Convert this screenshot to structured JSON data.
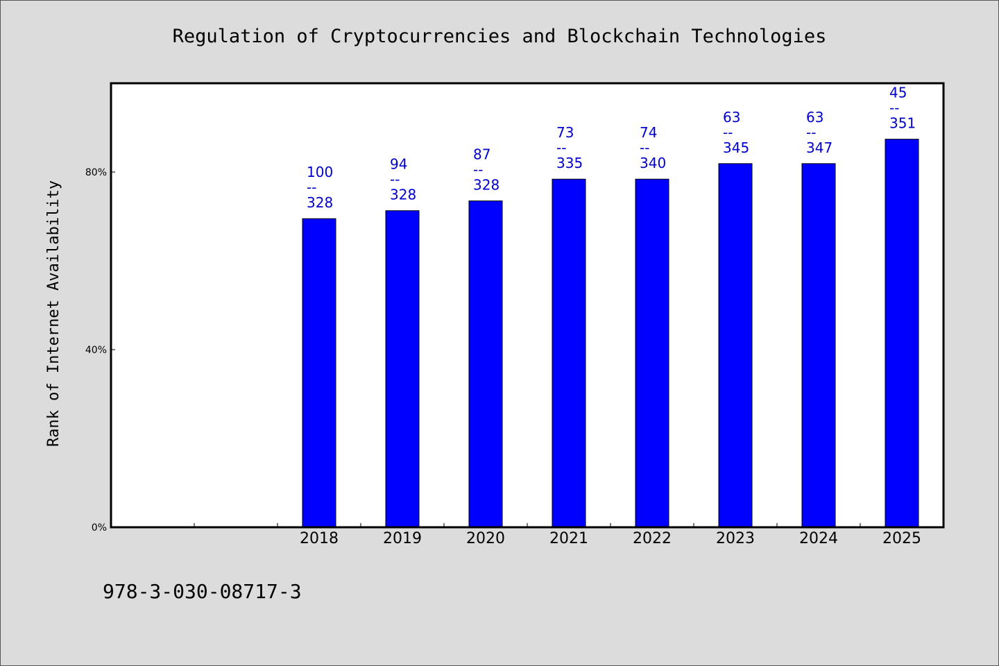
{
  "chart_data": {
    "type": "bar",
    "title": "Regulation of Cryptocurrencies and Blockchain Technologies",
    "xlabel": "",
    "ylabel": "Rank of Internet Availability",
    "categories": [
      "",
      "",
      "2018",
      "2019",
      "2020",
      "2021",
      "2022",
      "2023",
      "2024",
      "2025"
    ],
    "values": [
      null,
      null,
      69.5,
      71.3,
      73.5,
      78.4,
      78.4,
      81.9,
      81.9,
      87.4
    ],
    "data_labels": [
      null,
      null,
      [
        "100",
        "--",
        "328"
      ],
      [
        "94",
        "--",
        "328"
      ],
      [
        "87",
        "--",
        "328"
      ],
      [
        "73",
        "--",
        "335"
      ],
      [
        "74",
        "--",
        "340"
      ],
      [
        "63",
        "--",
        "345"
      ],
      [
        "63",
        "--",
        "347"
      ],
      [
        "45",
        "--",
        "351"
      ]
    ],
    "y_ticks": [
      {
        "value": 0,
        "label": "0%"
      },
      {
        "value": 40,
        "label": "40%"
      },
      {
        "value": 80,
        "label": "80%"
      }
    ],
    "ylim": [
      0,
      100
    ],
    "grid": false,
    "legend": "none",
    "bar_color": "#0000ff",
    "label_color": "#0000cc"
  },
  "footer": {
    "text": "978-3-030-08717-3"
  }
}
